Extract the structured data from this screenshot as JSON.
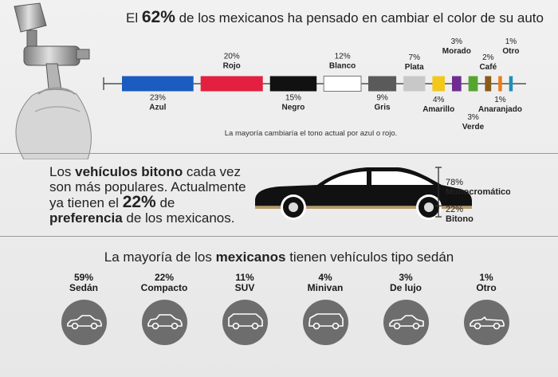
{
  "header": {
    "title_pre": "El ",
    "title_pct": "62%",
    "title_post": " de los mexicanos ha pensado en cambiar el color de su auto",
    "note": "La mayoría cambiaría el tono actual por azul o rojo."
  },
  "bitono_section": {
    "line1_pre": "Los ",
    "line1_bold": "vehículos bitono",
    "line1_post": " cada vez",
    "line2": "son más populares. Actualmente",
    "line3_pre": "ya tienen el ",
    "line3_pct": "22%",
    "line3_post": " de",
    "line4_bold": "preferencia",
    "line4_post": " de los mexicanos."
  },
  "types_section": {
    "title_pre": "La mayoría de los ",
    "title_bold": "mexicanos",
    "title_post": " tienen vehículos tipo sedán"
  },
  "chart_data": [
    {
      "type": "bar",
      "name": "colors",
      "categories": [
        "Azul",
        "Rojo",
        "Negro",
        "Blanco",
        "Gris",
        "Plata",
        "Amarillo",
        "Morado",
        "Verde",
        "Café",
        "Anaranjado",
        "Otro"
      ],
      "values": [
        23,
        20,
        15,
        12,
        9,
        7,
        4,
        3,
        3,
        2,
        1,
        1
      ],
      "labels": [
        "23%",
        "20%",
        "15%",
        "12%",
        "9%",
        "7%",
        "4%",
        "3%",
        "3%",
        "2%",
        "1%",
        "1%"
      ],
      "colors": [
        "#1c5bbf",
        "#e3203f",
        "#111111",
        "#ffffff",
        "#5a5a5a",
        "#c8c8c8",
        "#f3c81c",
        "#6f2d91",
        "#55a62f",
        "#8a5a17",
        "#ed7b1a",
        "#1f8fb8"
      ],
      "label_position": [
        "below",
        "above",
        "below",
        "above",
        "below",
        "above",
        "below",
        "above",
        "below",
        "above",
        "below",
        "above"
      ]
    },
    {
      "type": "bar",
      "name": "bitono",
      "categories": [
        "Monocromático",
        "Bitono"
      ],
      "values": [
        78,
        22
      ],
      "labels": [
        "78%",
        "22%"
      ],
      "colors": [
        "#111111",
        "#b59a6a"
      ]
    },
    {
      "type": "bar",
      "name": "vehicle_types",
      "categories": [
        "Sedán",
        "Compacto",
        "SUV",
        "Minivan",
        "De lujo",
        "Otro"
      ],
      "values": [
        59,
        22,
        11,
        4,
        3,
        1
      ],
      "labels": [
        "59%",
        "22%",
        "11%",
        "4%",
        "3%",
        "1%"
      ],
      "icons": [
        "sedan-icon",
        "compact-car-icon",
        "suv-icon",
        "minivan-icon",
        "luxury-car-icon",
        "convertible-icon"
      ]
    }
  ]
}
